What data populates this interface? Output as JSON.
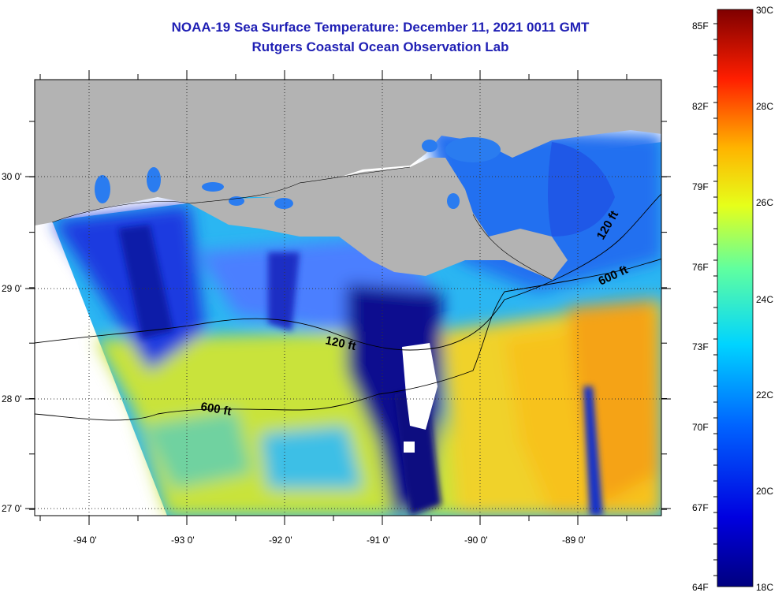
{
  "title": "NOAA-19 Sea Surface Temperature:  December 11, 2021 0011 GMT",
  "subtitle": "Rutgers Coastal Ocean Observation Lab",
  "lat_labels": [
    "30 0'",
    "29 0'",
    "28 0'",
    "27 0'"
  ],
  "lon_labels": [
    "-94 0'",
    "-93 0'",
    "-92 0'",
    "-91 0'",
    "-90 0'",
    "-89 0'"
  ],
  "contours": [
    {
      "label": "120 ft",
      "depth": 120
    },
    {
      "label": "120 ft",
      "depth": 120
    },
    {
      "label": "600 ft",
      "depth": 600
    },
    {
      "label": "600 ft",
      "depth": 600
    }
  ],
  "colorbar": {
    "fahrenheit": [
      "85F",
      "82F",
      "79F",
      "76F",
      "73F",
      "70F",
      "67F",
      "64F"
    ],
    "celsius": [
      "30C",
      "28C",
      "26C",
      "24C",
      "22C",
      "20C",
      "18C"
    ],
    "colors": [
      "#7f0000",
      "#ff0000",
      "#ff8c00",
      "#ffff00",
      "#7fff7f",
      "#00e5ff",
      "#007fff",
      "#0000cd",
      "#00007f"
    ]
  },
  "colors": {
    "land": "#b3b3b3",
    "title": "#1f1fb4",
    "cold": "#0a0a8c",
    "cool": "#1e5aff",
    "mid": "#2eb7ff",
    "warm": "#c8e632",
    "hot": "#f5b414"
  }
}
